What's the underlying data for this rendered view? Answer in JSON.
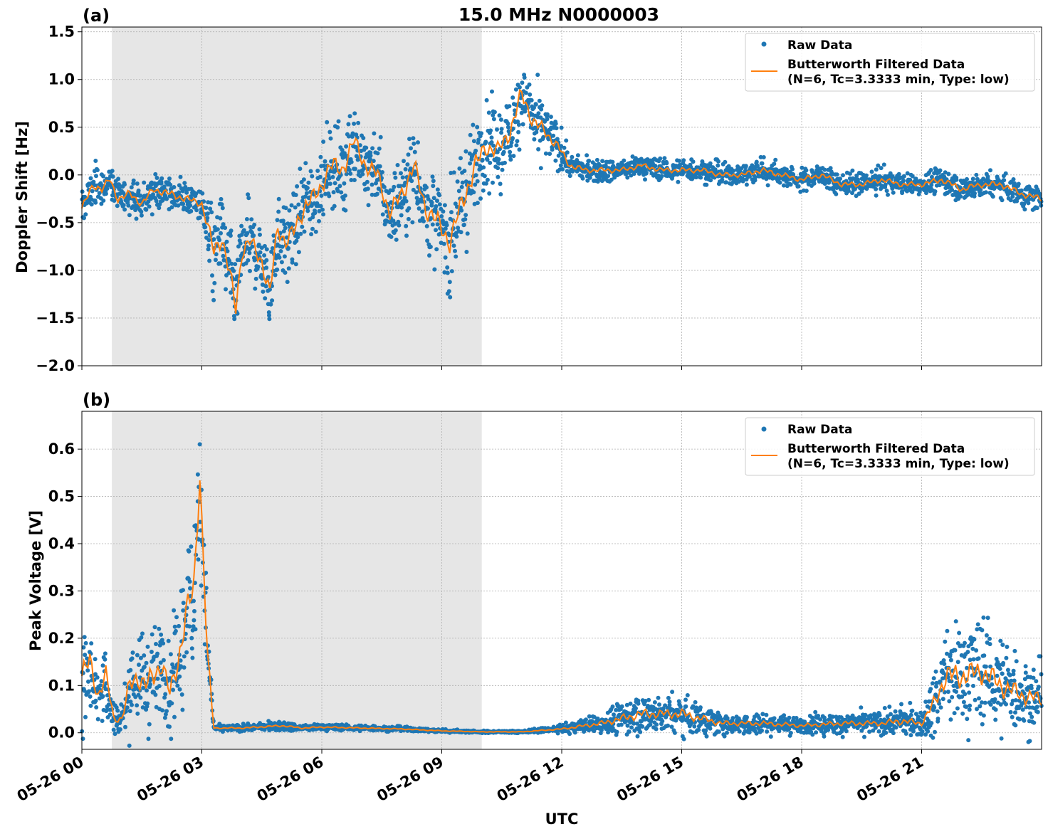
{
  "figure": {
    "title": "15.0 MHz N0000003",
    "xlabel": "UTC",
    "x_ticks": [
      "05-26 00",
      "05-26 03",
      "05-26 06",
      "05-26 09",
      "05-26 12",
      "05-26 15",
      "05-26 18",
      "05-26 21"
    ],
    "colors": {
      "raw": "#1f77b4",
      "filtered": "#ff7f0e",
      "shade": "#e6e6e6",
      "grid": "#b0b0b0"
    }
  },
  "legend": {
    "raw": "Raw Data",
    "filtered_line1": "Butterworth Filtered Data",
    "filtered_line2": "(N=6, Tc=3.3333 min, Type: low)"
  },
  "chart_data": [
    {
      "type": "scatter",
      "panel": "(a)",
      "ylabel": "Doppler Shift [Hz]",
      "xlim_hours": [
        0,
        24
      ],
      "ylim": [
        -2.0,
        1.55
      ],
      "yticks": [
        -2.0,
        -1.5,
        -1.0,
        -0.5,
        0.0,
        0.5,
        1.0,
        1.5
      ],
      "ytick_labels": [
        "−2.0",
        "−1.5",
        "−1.0",
        "−0.5",
        "0.0",
        "0.5",
        "1.0",
        "1.5"
      ],
      "shaded_interval_hours": [
        0.75,
        10.0
      ],
      "grid": true,
      "legend_position": "top-right",
      "series": [
        {
          "name": "Butterworth Filtered Data",
          "style": "line",
          "x_hours": [
            0,
            0.3,
            0.5,
            0.7,
            0.9,
            1.2,
            1.5,
            1.8,
            2.2,
            2.6,
            3.0,
            3.3,
            3.5,
            3.7,
            3.85,
            4.0,
            4.2,
            4.5,
            4.7,
            4.9,
            5.1,
            5.3,
            5.6,
            5.9,
            6.2,
            6.5,
            6.8,
            7.1,
            7.4,
            7.7,
            8.0,
            8.3,
            8.6,
            8.9,
            9.2,
            9.5,
            9.8,
            10.1,
            10.4,
            10.7,
            11.0,
            11.3,
            11.6,
            11.9,
            12.2,
            12.6,
            13.0,
            13.5,
            14.0,
            14.5,
            15.0,
            15.5,
            16.0,
            16.5,
            17.0,
            17.5,
            18.0,
            18.5,
            19.0,
            19.5,
            20.0,
            20.5,
            21.0,
            21.5,
            22.0,
            22.5,
            23.0,
            23.5,
            24.0
          ],
          "values": [
            -0.35,
            -0.1,
            -0.15,
            -0.05,
            -0.25,
            -0.2,
            -0.3,
            -0.15,
            -0.2,
            -0.25,
            -0.3,
            -0.8,
            -0.65,
            -1.05,
            -1.4,
            -0.8,
            -0.7,
            -0.9,
            -1.25,
            -0.55,
            -0.7,
            -0.6,
            -0.3,
            -0.2,
            0.1,
            0.05,
            0.35,
            0.1,
            0.0,
            -0.4,
            -0.2,
            0.1,
            -0.35,
            -0.5,
            -0.7,
            -0.3,
            0.05,
            0.3,
            0.25,
            0.45,
            0.85,
            0.55,
            0.45,
            0.3,
            0.1,
            0.05,
            0.05,
            0.05,
            0.1,
            0.05,
            0.05,
            0.05,
            0.0,
            0.0,
            0.05,
            0.0,
            -0.05,
            0.0,
            -0.1,
            -0.1,
            -0.05,
            -0.1,
            -0.1,
            -0.05,
            -0.15,
            -0.1,
            -0.1,
            -0.2,
            -0.25
          ]
        },
        {
          "name": "Raw Data",
          "style": "points",
          "x_hours": [
            0,
            0.3,
            0.5,
            0.7,
            0.9,
            1.2,
            1.5,
            1.8,
            2.2,
            2.6,
            3.0,
            3.3,
            3.5,
            3.7,
            3.85,
            4.0,
            4.2,
            4.5,
            4.7,
            4.9,
            5.1,
            5.3,
            5.6,
            5.9,
            6.2,
            6.5,
            6.8,
            7.1,
            7.4,
            7.7,
            8.0,
            8.3,
            8.6,
            8.9,
            9.2,
            9.5,
            9.8,
            10.1,
            10.4,
            10.7,
            11.0,
            11.3,
            11.6,
            11.9,
            12.2,
            12.6,
            13.0,
            13.5,
            14.0,
            14.5,
            15.0,
            15.5,
            16.0,
            16.5,
            17.0,
            17.5,
            18.0,
            18.5,
            19.0,
            19.5,
            20.0,
            20.5,
            21.0,
            21.5,
            22.0,
            22.5,
            23.0,
            23.5,
            24.0
          ],
          "values": [
            -0.35,
            -0.1,
            -0.15,
            -0.05,
            -0.25,
            -0.2,
            -0.3,
            -0.15,
            -0.2,
            -0.25,
            -0.3,
            -0.8,
            -0.65,
            -1.05,
            -1.4,
            -0.8,
            -0.7,
            -0.9,
            -1.25,
            -0.55,
            -0.7,
            -0.6,
            -0.3,
            -0.2,
            0.1,
            0.05,
            0.35,
            0.1,
            0.0,
            -0.4,
            -0.2,
            0.1,
            -0.35,
            -0.5,
            -0.7,
            -0.3,
            0.05,
            0.3,
            0.25,
            0.45,
            0.85,
            0.55,
            0.45,
            0.3,
            0.1,
            0.05,
            0.05,
            0.05,
            0.1,
            0.05,
            0.05,
            0.05,
            0.0,
            0.0,
            0.05,
            0.0,
            -0.05,
            0.0,
            -0.1,
            -0.1,
            -0.05,
            -0.1,
            -0.1,
            -0.05,
            -0.15,
            -0.1,
            -0.1,
            -0.2,
            -0.25
          ],
          "spread": [
            0.15,
            0.2,
            0.15,
            0.15,
            0.15,
            0.15,
            0.15,
            0.15,
            0.15,
            0.15,
            0.15,
            0.4,
            0.35,
            0.4,
            0.4,
            0.35,
            0.35,
            0.35,
            0.4,
            0.4,
            0.35,
            0.4,
            0.35,
            0.35,
            0.4,
            0.4,
            0.4,
            0.35,
            0.35,
            0.35,
            0.4,
            0.4,
            0.4,
            0.4,
            0.45,
            0.45,
            0.5,
            0.4,
            0.35,
            0.35,
            0.35,
            0.35,
            0.25,
            0.2,
            0.12,
            0.1,
            0.1,
            0.1,
            0.1,
            0.1,
            0.1,
            0.1,
            0.1,
            0.1,
            0.12,
            0.1,
            0.1,
            0.1,
            0.1,
            0.1,
            0.1,
            0.1,
            0.1,
            0.12,
            0.12,
            0.12,
            0.12,
            0.12,
            0.12
          ]
        }
      ]
    },
    {
      "type": "scatter",
      "panel": "(b)",
      "ylabel": "Peak Voltage [V]",
      "xlim_hours": [
        0,
        24
      ],
      "ylim": [
        -0.035,
        0.68
      ],
      "yticks": [
        0.0,
        0.1,
        0.2,
        0.3,
        0.4,
        0.5,
        0.6
      ],
      "ytick_labels": [
        "0.0",
        "0.1",
        "0.2",
        "0.3",
        "0.4",
        "0.5",
        "0.6"
      ],
      "shaded_interval_hours": [
        0.75,
        10.0
      ],
      "grid": true,
      "legend_position": "top-right",
      "series": [
        {
          "name": "Butterworth Filtered Data",
          "style": "line",
          "x_hours": [
            0,
            0.2,
            0.4,
            0.6,
            0.8,
            1.0,
            1.2,
            1.4,
            1.6,
            1.8,
            2.0,
            2.2,
            2.4,
            2.6,
            2.8,
            2.95,
            3.05,
            3.15,
            3.3,
            4.0,
            5.0,
            5.5,
            6.0,
            7.0,
            8.0,
            9.0,
            10.0,
            11.0,
            12.0,
            13.0,
            13.5,
            14.0,
            14.5,
            15.0,
            15.5,
            16.0,
            17.0,
            18.0,
            19.0,
            20.0,
            20.5,
            21.0,
            21.3,
            21.6,
            22.0,
            22.5,
            23.0,
            23.5,
            24.0
          ],
          "values": [
            0.12,
            0.15,
            0.08,
            0.12,
            0.03,
            0.03,
            0.1,
            0.12,
            0.1,
            0.12,
            0.15,
            0.08,
            0.15,
            0.25,
            0.3,
            0.55,
            0.35,
            0.15,
            0.01,
            0.01,
            0.015,
            0.01,
            0.012,
            0.01,
            0.008,
            0.004,
            0.002,
            0.002,
            0.008,
            0.02,
            0.03,
            0.04,
            0.04,
            0.04,
            0.03,
            0.02,
            0.02,
            0.015,
            0.02,
            0.02,
            0.025,
            0.02,
            0.06,
            0.12,
            0.12,
            0.13,
            0.1,
            0.08,
            0.07
          ]
        },
        {
          "name": "Raw Data",
          "style": "points",
          "x_hours": [
            0,
            0.2,
            0.4,
            0.6,
            0.8,
            1.0,
            1.2,
            1.4,
            1.6,
            1.8,
            2.0,
            2.2,
            2.4,
            2.6,
            2.8,
            2.95,
            3.05,
            3.15,
            3.3,
            4.0,
            5.0,
            5.5,
            6.0,
            7.0,
            8.0,
            9.0,
            10.0,
            11.0,
            12.0,
            13.0,
            13.5,
            14.0,
            14.5,
            15.0,
            15.5,
            16.0,
            17.0,
            18.0,
            19.0,
            20.0,
            20.5,
            21.0,
            21.3,
            21.6,
            22.0,
            22.5,
            23.0,
            23.5,
            24.0
          ],
          "values": [
            0.12,
            0.15,
            0.08,
            0.12,
            0.03,
            0.03,
            0.1,
            0.12,
            0.1,
            0.12,
            0.15,
            0.08,
            0.15,
            0.25,
            0.3,
            0.55,
            0.35,
            0.15,
            0.01,
            0.01,
            0.015,
            0.01,
            0.012,
            0.01,
            0.008,
            0.004,
            0.002,
            0.002,
            0.008,
            0.02,
            0.03,
            0.04,
            0.04,
            0.04,
            0.03,
            0.02,
            0.02,
            0.015,
            0.02,
            0.02,
            0.025,
            0.02,
            0.06,
            0.12,
            0.12,
            0.13,
            0.1,
            0.08,
            0.07
          ],
          "spread": [
            0.1,
            0.1,
            0.06,
            0.08,
            0.03,
            0.03,
            0.09,
            0.1,
            0.08,
            0.1,
            0.1,
            0.08,
            0.1,
            0.12,
            0.15,
            0.1,
            0.15,
            0.1,
            0.005,
            0.006,
            0.008,
            0.006,
            0.006,
            0.005,
            0.004,
            0.003,
            0.002,
            0.002,
            0.006,
            0.02,
            0.03,
            0.04,
            0.035,
            0.04,
            0.03,
            0.02,
            0.02,
            0.015,
            0.02,
            0.02,
            0.03,
            0.02,
            0.06,
            0.1,
            0.1,
            0.1,
            0.09,
            0.07,
            0.06
          ]
        }
      ]
    }
  ]
}
